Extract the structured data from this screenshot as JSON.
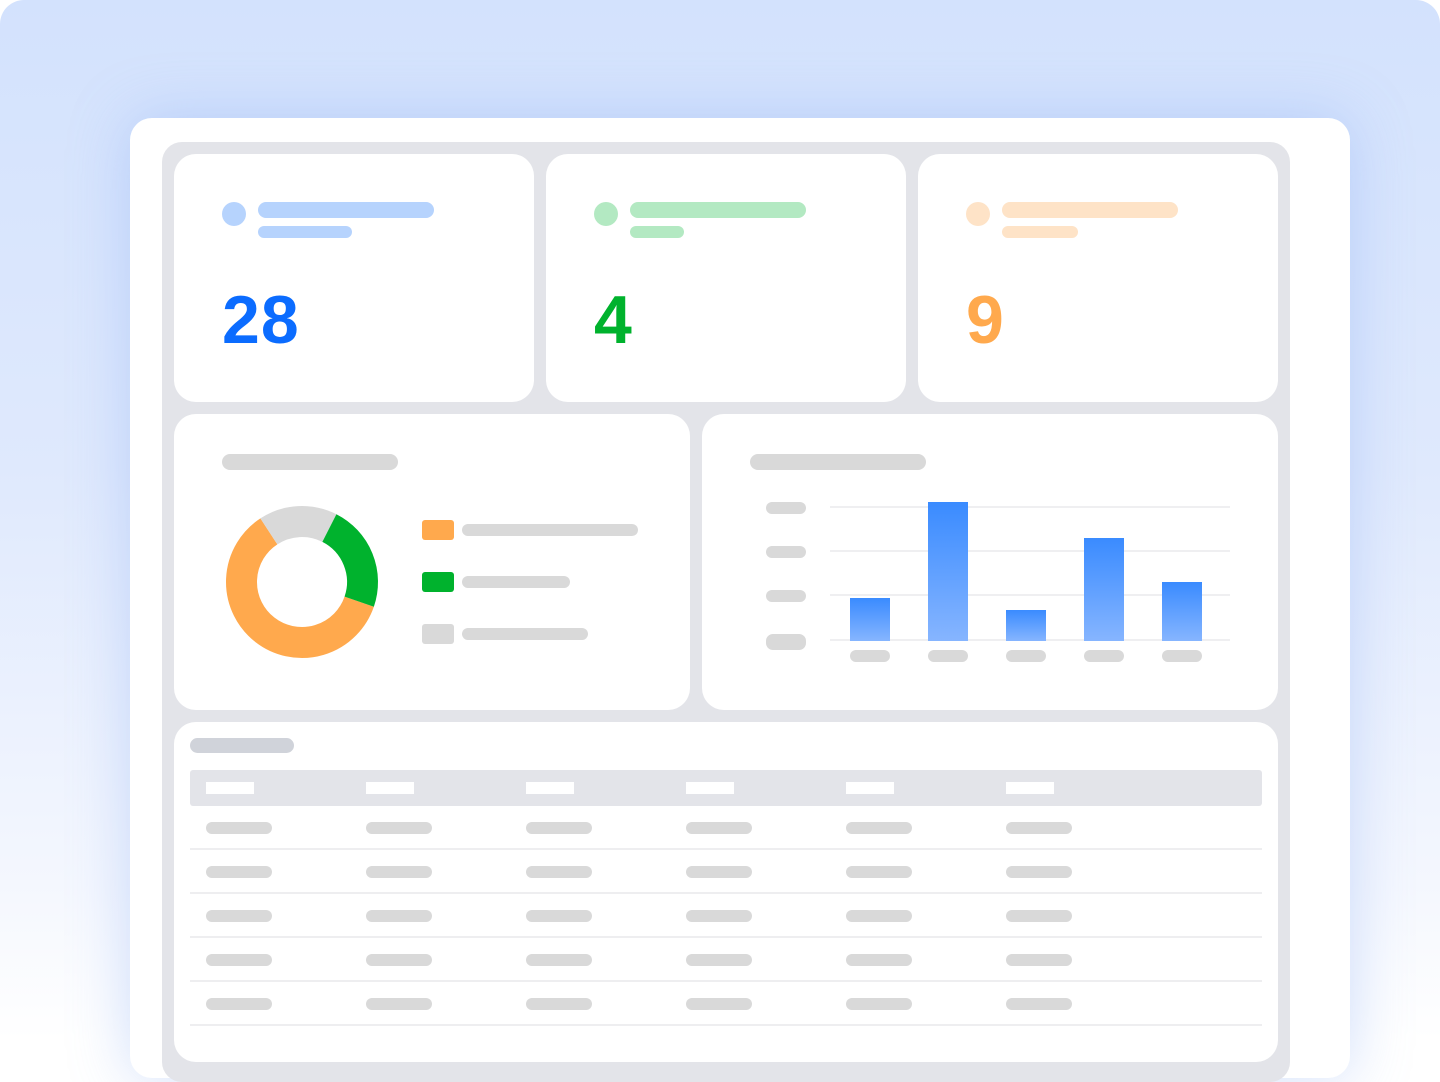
{
  "colors": {
    "blue": "#0b6cff",
    "green": "#00b22d",
    "orange": "#ffa94d",
    "gray": "#d9d9d9",
    "light_blue": "#b6d3fd",
    "light_green": "#b3e9c2",
    "light_orange": "#fee3c7"
  },
  "stat_cards": [
    {
      "value": "28",
      "color": "#0b6cff",
      "accent": "#b6d3fd"
    },
    {
      "value": "4",
      "color": "#00b22d",
      "accent": "#b3e9c2"
    },
    {
      "value": "9",
      "color": "#ffa94d",
      "accent": "#fee3c7"
    }
  ],
  "chart_data": [
    {
      "type": "pie",
      "donut": true,
      "slices": [
        {
          "color": "#ffa94d",
          "value": 60.5
        },
        {
          "color": "#00b22d",
          "value": 22.8
        },
        {
          "color": "#d9d9d9",
          "value": 16.7
        }
      ]
    },
    {
      "type": "bar",
      "categories": [
        "",
        "",
        "",
        "",
        ""
      ],
      "values": [
        0.32,
        1.04,
        0.23,
        0.77,
        0.44
      ],
      "ylim": [
        0,
        1
      ],
      "gridlines": 4,
      "grid": true,
      "bar_color": "#3a8bff"
    }
  ],
  "table": {
    "columns": 6,
    "rows": 5
  }
}
